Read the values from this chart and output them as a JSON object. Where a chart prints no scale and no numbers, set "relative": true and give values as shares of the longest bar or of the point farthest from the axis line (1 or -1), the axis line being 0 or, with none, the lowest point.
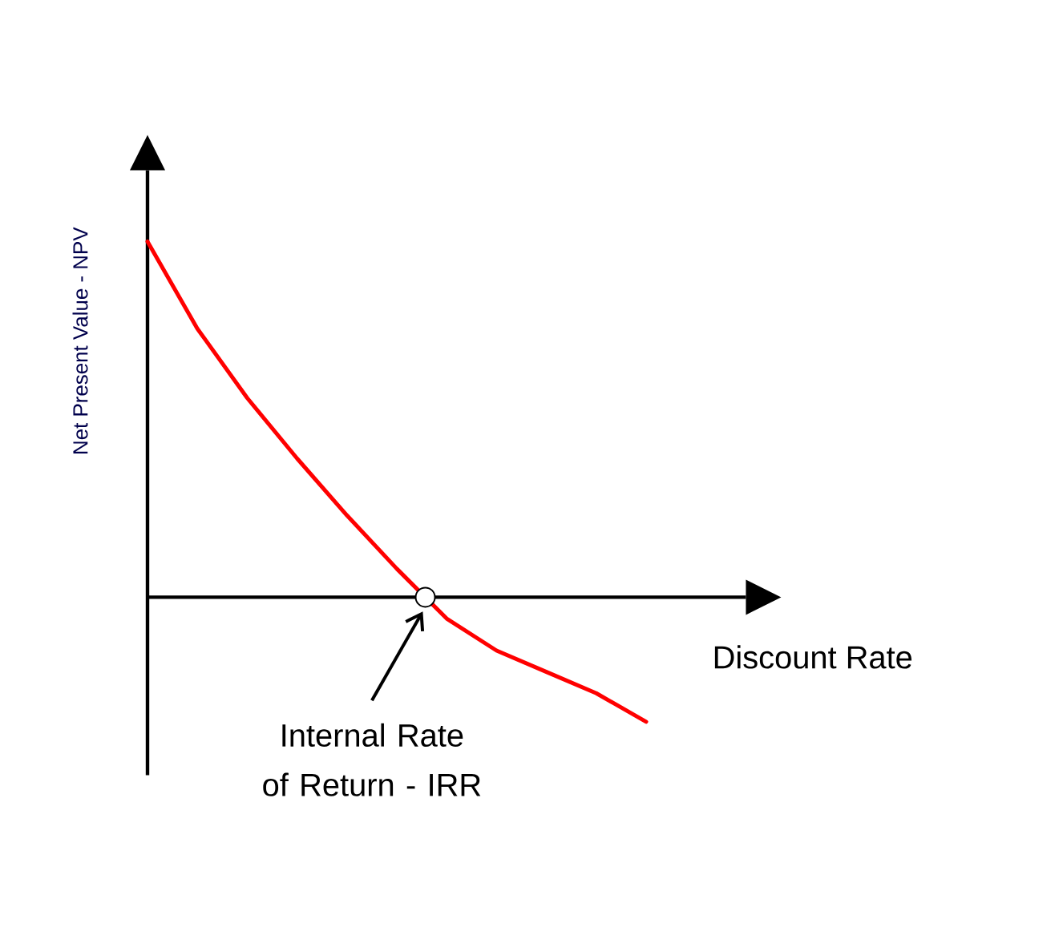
{
  "chart_data": {
    "type": "line",
    "relative": true,
    "xlabel": "Discount Rate",
    "ylabel": "Net Present Value - NPV",
    "categories": [
      null,
      null,
      null,
      null,
      null,
      null,
      null,
      null,
      null,
      null,
      null
    ],
    "series": [
      {
        "color": "#ff0000",
        "values": [
          1,
          0.755,
          0.56,
          0.39,
          0.23,
          0.08,
          -0.06,
          -0.15,
          -0.21,
          -0.27,
          -0.35
        ]
      }
    ],
    "annotations": [
      "Internal Rate of Return - IRR"
    ],
    "marker": "none",
    "line_style": "solid"
  }
}
